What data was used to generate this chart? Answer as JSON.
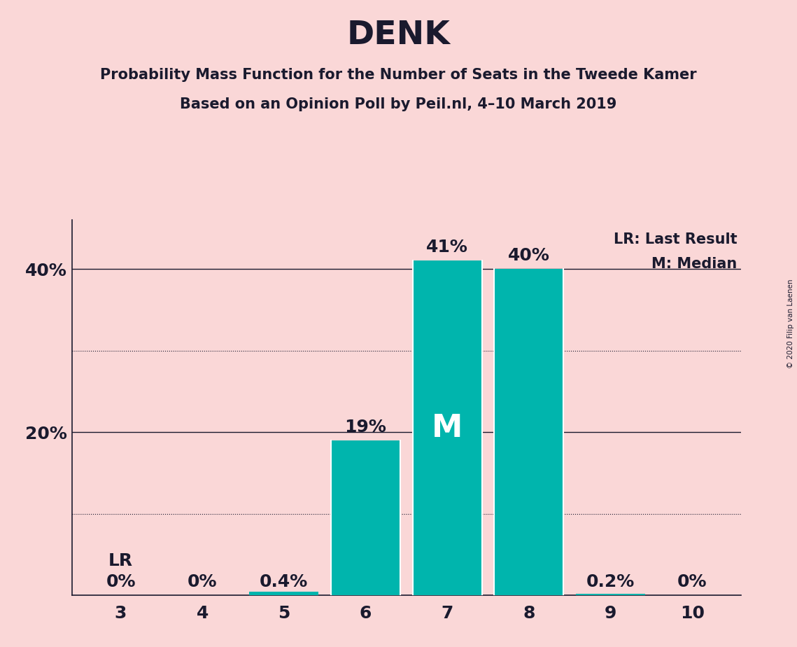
{
  "title": "DENK",
  "subtitle1": "Probability Mass Function for the Number of Seats in the Tweede Kamer",
  "subtitle2": "Based on an Opinion Poll by Peil.nl, 4–10 March 2019",
  "copyright": "© 2020 Filip van Laenen",
  "categories": [
    3,
    4,
    5,
    6,
    7,
    8,
    9,
    10
  ],
  "values": [
    0.0,
    0.0,
    0.004,
    0.19,
    0.41,
    0.4,
    0.002,
    0.0
  ],
  "labels": [
    "0%",
    "0%",
    "0.4%",
    "19%",
    "41%",
    "40%",
    "0.2%",
    "0%"
  ],
  "bar_color": "#00B5AD",
  "background_color": "#FAD7D7",
  "text_color": "#1a1a2e",
  "median_bar": 7,
  "lr_bar": 3,
  "median_label": "M",
  "lr_label": "LR",
  "legend_lr": "LR: Last Result",
  "legend_m": "M: Median",
  "ylim": [
    0,
    0.46
  ],
  "title_fontsize": 34,
  "subtitle_fontsize": 15,
  "label_fontsize": 18,
  "tick_fontsize": 18,
  "legend_fontsize": 15
}
